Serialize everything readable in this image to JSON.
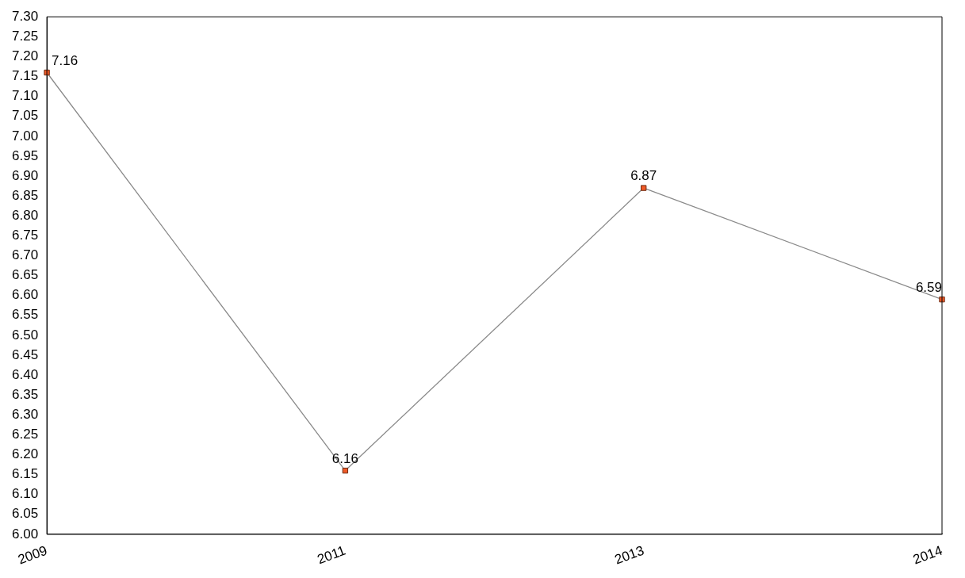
{
  "chart_data": {
    "type": "line",
    "categories": [
      "2009",
      "2011",
      "2013",
      "2014"
    ],
    "series": [
      {
        "color": "#f05a28",
        "values": [
          7.16,
          6.16,
          6.87,
          6.59
        ]
      }
    ],
    "ylim": [
      6.0,
      7.3
    ],
    "yticks": [
      {
        "value": 6.0,
        "label": "6.00"
      },
      6.05,
      {
        "value": 6.1,
        "label": "6.10"
      },
      6.15,
      {
        "value": 6.2,
        "label": "6.20"
      },
      6.25,
      {
        "value": 6.3,
        "label": "6.30"
      },
      6.35,
      {
        "value": 6.4,
        "label": "6.40"
      },
      6.45,
      {
        "value": 6.5,
        "label": "6.50"
      },
      6.55,
      {
        "value": 6.6,
        "label": "6.60"
      },
      6.65,
      {
        "value": 6.7,
        "label": "6.70"
      },
      6.75,
      {
        "value": 6.8,
        "label": "6.80"
      },
      6.85,
      {
        "value": 6.9,
        "label": "6.90"
      },
      6.95,
      {
        "value": 7.0,
        "label": "7.00"
      },
      7.05,
      {
        "value": 7.1,
        "label": "7.10"
      },
      7.15,
      {
        "value": 7.2,
        "label": "7.20"
      },
      7.25,
      {
        "value": 7.3,
        "label": "7.30"
      }
    ],
    "grid": false,
    "legend": false,
    "marker": "square",
    "line_style": "solid",
    "data_labels": true
  }
}
